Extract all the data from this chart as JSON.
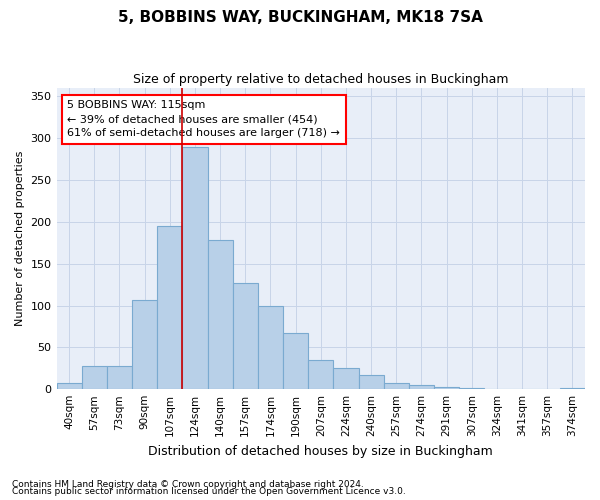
{
  "title1": "5, BOBBINS WAY, BUCKINGHAM, MK18 7SA",
  "title2": "Size of property relative to detached houses in Buckingham",
  "xlabel": "Distribution of detached houses by size in Buckingham",
  "ylabel": "Number of detached properties",
  "footnote1": "Contains HM Land Registry data © Crown copyright and database right 2024.",
  "footnote2": "Contains public sector information licensed under the Open Government Licence v3.0.",
  "annotation_line1": "5 BOBBINS WAY: 115sqm",
  "annotation_line2": "← 39% of detached houses are smaller (454)",
  "annotation_line3": "61% of semi-detached houses are larger (718) →",
  "bar_color": "#b8d0e8",
  "bar_edge_color": "#7aaad0",
  "red_line_color": "#cc0000",
  "background_color": "#e8eef8",
  "grid_color": "#c8d4e8",
  "categories": [
    "40sqm",
    "57sqm",
    "73sqm",
    "90sqm",
    "107sqm",
    "124sqm",
    "140sqm",
    "157sqm",
    "174sqm",
    "190sqm",
    "207sqm",
    "224sqm",
    "240sqm",
    "257sqm",
    "274sqm",
    "291sqm",
    "307sqm",
    "324sqm",
    "341sqm",
    "357sqm",
    "374sqm"
  ],
  "bar_values": [
    7,
    28,
    28,
    107,
    195,
    290,
    178,
    127,
    100,
    67,
    35,
    25,
    17,
    7,
    5,
    3,
    1,
    0,
    0,
    0,
    2
  ],
  "red_line_x": 4.5,
  "ylim": [
    0,
    360
  ],
  "yticks": [
    0,
    50,
    100,
    150,
    200,
    250,
    300,
    350
  ]
}
